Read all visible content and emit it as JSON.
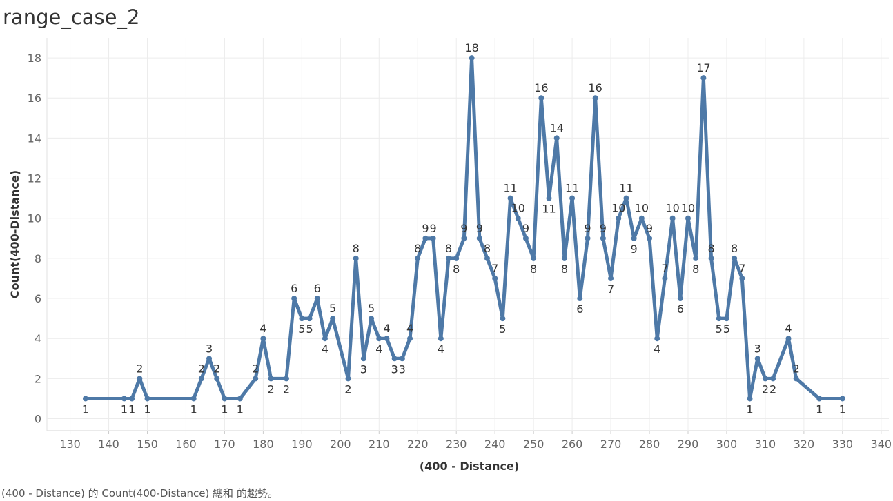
{
  "page": {
    "title": "range_case_2",
    "caption": "(400 - Distance) 的 Count(400-Distance) 總和 的趨勢。"
  },
  "colors": {
    "line": "#4e79a7",
    "grid": "#ececec",
    "tick_text": "#666666",
    "axis_title": "#333333"
  },
  "chart_data": {
    "type": "line",
    "title": "range_case_2",
    "xlabel": "(400 - Distance)",
    "ylabel": "Count(400-Distance)",
    "xlim": [
      124,
      342
    ],
    "ylim": [
      -0.6,
      19
    ],
    "x_ticks": [
      130,
      140,
      150,
      160,
      170,
      180,
      190,
      200,
      210,
      220,
      230,
      240,
      250,
      260,
      270,
      280,
      290,
      300,
      310,
      320,
      330,
      340
    ],
    "y_ticks": [
      0,
      2,
      4,
      6,
      8,
      10,
      12,
      14,
      16,
      18
    ],
    "grid": true,
    "series": [
      {
        "x": [
          134,
          144,
          146,
          148,
          150,
          162,
          164,
          166,
          168,
          170,
          174,
          178,
          180,
          182,
          186,
          188,
          190,
          192,
          194,
          196,
          198,
          202,
          204,
          206,
          208,
          210,
          212,
          214,
          216,
          218,
          220,
          222,
          224,
          226,
          228,
          230,
          232,
          234,
          236,
          238,
          240,
          242,
          244,
          246,
          248,
          250,
          252,
          254,
          256,
          258,
          260,
          262,
          264,
          266,
          268,
          270,
          272,
          274,
          276,
          278,
          280,
          282,
          284,
          286,
          288,
          290,
          292,
          294,
          296,
          298,
          300,
          302,
          304,
          306,
          308,
          310,
          312,
          316,
          318,
          324,
          330
        ],
        "y": [
          1,
          1,
          1,
          2,
          1,
          1,
          2,
          3,
          2,
          1,
          1,
          2,
          4,
          2,
          2,
          6,
          5,
          5,
          6,
          4,
          5,
          2,
          8,
          3,
          5,
          4,
          4,
          3,
          3,
          4,
          8,
          9,
          9,
          4,
          8,
          8,
          9,
          18,
          9,
          8,
          7,
          5,
          11,
          10,
          9,
          8,
          16,
          11,
          14,
          8,
          11,
          6,
          9,
          16,
          9,
          7,
          10,
          11,
          9,
          10,
          9,
          4,
          7,
          10,
          6,
          10,
          8,
          17,
          8,
          5,
          5,
          8,
          7,
          1,
          3,
          2,
          2,
          4,
          2,
          1,
          1
        ]
      }
    ]
  }
}
